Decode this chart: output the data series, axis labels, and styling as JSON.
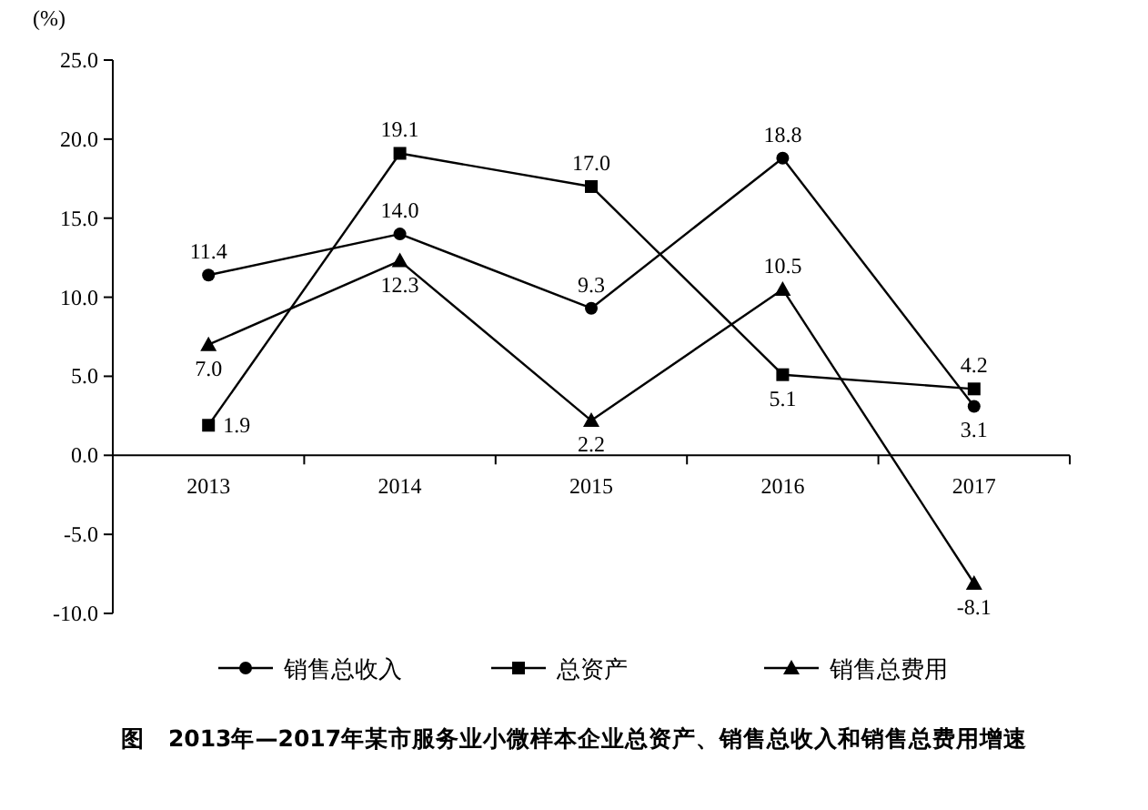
{
  "chart_data": {
    "type": "line",
    "title": "图　2013年—2017年某市服务业小微样本企业总资产、销售总收入和销售总费用增速",
    "ylabel": "(%)",
    "categories": [
      "2013",
      "2014",
      "2015",
      "2016",
      "2017"
    ],
    "series": [
      {
        "name": "销售总收入",
        "color": "#000000",
        "marker": "circle",
        "values": [
          11.4,
          14.0,
          9.3,
          18.8,
          3.1
        ],
        "value_labels": [
          "11.4",
          "14.0",
          "9.3",
          "18.8",
          "3.1"
        ]
      },
      {
        "name": "总资产",
        "color": "#000000",
        "marker": "square",
        "values": [
          1.9,
          19.1,
          17.0,
          5.1,
          4.2
        ],
        "value_labels": [
          "1.9",
          "19.1",
          "17.0",
          "5.1",
          "4.2"
        ]
      },
      {
        "name": "销售总费用",
        "color": "#000000",
        "marker": "triangle",
        "values": [
          7.0,
          12.3,
          2.2,
          10.5,
          -8.1
        ],
        "value_labels": [
          "7.0",
          "12.3",
          "2.2",
          "10.5",
          "-8.1"
        ]
      }
    ],
    "ylim": [
      -10,
      25
    ],
    "yticks": [
      {
        "value": -10,
        "label": "-10.0"
      },
      {
        "value": -5,
        "label": "-5.0"
      },
      {
        "value": 0,
        "label": "0.0"
      },
      {
        "value": 5,
        "label": "5.0"
      },
      {
        "value": 10,
        "label": "10.0"
      },
      {
        "value": 15,
        "label": "15.0"
      },
      {
        "value": 20,
        "label": "20.0"
      },
      {
        "value": 25,
        "label": "25.0"
      }
    ],
    "grid": false,
    "legend": "bottom",
    "line_style": "solid"
  }
}
